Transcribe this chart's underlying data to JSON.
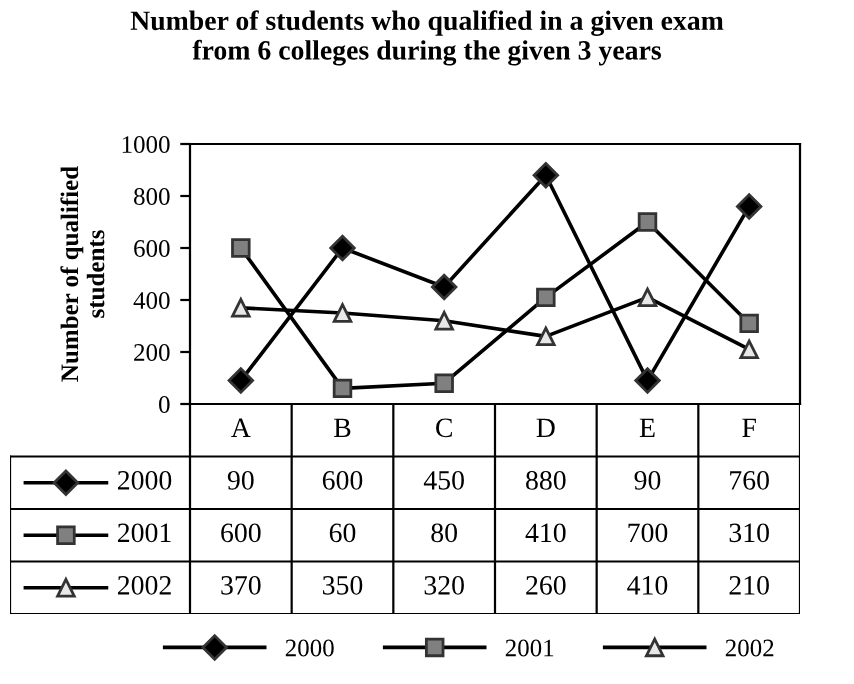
{
  "chart_data": {
    "type": "line",
    "title": "Number of students who qualified in a given exam\nfrom 6 colleges during the given 3 years",
    "ylabel": "Number of qualified\nstudents",
    "categories": [
      "A",
      "B",
      "C",
      "D",
      "E",
      "F"
    ],
    "series": [
      {
        "name": "2000",
        "color": "#000000",
        "marker": "diamond",
        "values": [
          90,
          600,
          450,
          880,
          90,
          760
        ]
      },
      {
        "name": "2001",
        "color": "#000000",
        "marker": "square",
        "values": [
          600,
          60,
          80,
          410,
          700,
          310
        ]
      },
      {
        "name": "2002",
        "color": "#000000",
        "marker": "triangle",
        "values": [
          370,
          350,
          320,
          260,
          410,
          210
        ]
      }
    ],
    "ylim": [
      0,
      1000
    ],
    "yticks": [
      0,
      200,
      400,
      600,
      800,
      1000
    ],
    "grid": false,
    "legend": "bottom",
    "data_labels": true,
    "line_style": "solid"
  }
}
